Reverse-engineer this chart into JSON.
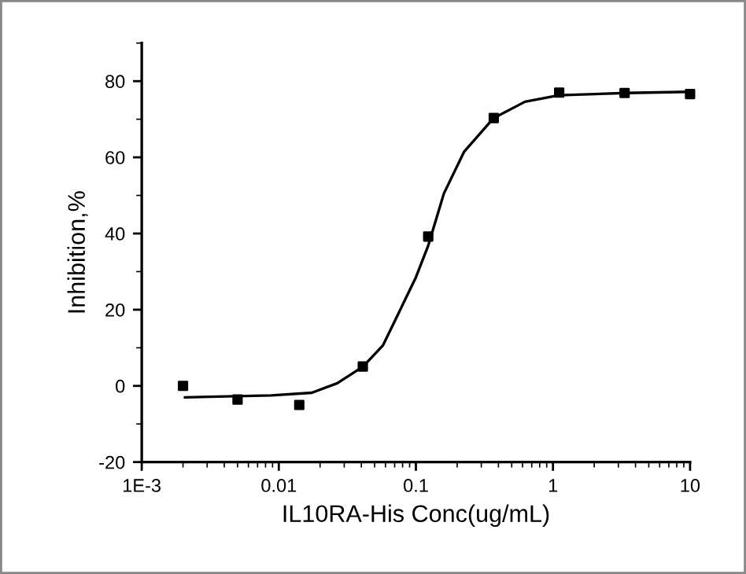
{
  "chart_data": {
    "type": "scatter",
    "xlabel": "IL10RA-His Conc(ug/mL)",
    "ylabel": "Inhibition,%",
    "log": "x",
    "xlim": [
      0.001,
      10
    ],
    "ylim": [
      -20,
      90
    ],
    "xticks": [
      {
        "value": 0.001,
        "label": "1E-3"
      },
      0.01,
      0.1,
      1,
      10
    ],
    "yticks": [
      -20,
      0,
      20,
      40,
      60,
      80
    ],
    "grid": false,
    "legend": false,
    "series": [
      {
        "marker": "square",
        "color": "#000000",
        "x": [
          0.002,
          0.005,
          0.0141,
          0.041,
          0.123,
          0.37,
          1.11,
          3.33,
          10
        ],
        "values": [
          0,
          -3.6,
          -5.0,
          5.1,
          39.2,
          70.3,
          77.0,
          76.9,
          76.6
        ]
      },
      {
        "type": "line",
        "marker": "none",
        "line_style": "solid",
        "color": "#000000",
        "x": [
          0.00207,
          0.00879,
          0.0174,
          0.0267,
          0.0412,
          0.0574,
          0.0741,
          0.1,
          0.1227,
          0.16,
          0.225,
          0.369,
          0.625,
          1.107,
          3.44,
          10
        ],
        "values": [
          -3.0,
          -2.5,
          -1.8,
          0.7,
          5.1,
          10.6,
          18.8,
          28.5,
          36.7,
          50.5,
          61.5,
          70.3,
          74.6,
          76.3,
          76.9,
          77.2
        ]
      }
    ]
  }
}
